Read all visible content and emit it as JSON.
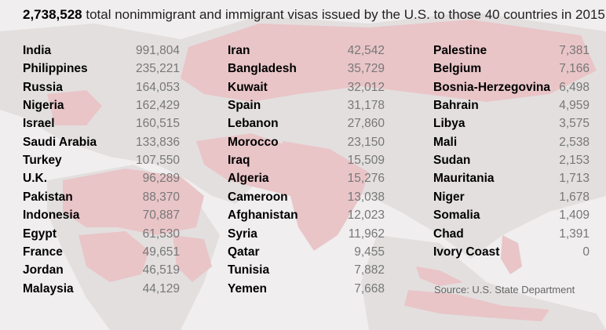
{
  "title": {
    "number": "2,738,528",
    "text": "total nonimmigrant and immigrant visas issued by the U.S. to those 40 countries in 2015"
  },
  "source": "Source: U.S. State Department",
  "colors": {
    "background": "#f0eeee",
    "land": "#e3dfdf",
    "highlight": "#e9c5c8",
    "value_text": "#777777"
  },
  "chart_data": {
    "type": "table",
    "columns": [
      "country",
      "visas"
    ],
    "rows": [
      {
        "country": "India",
        "value": "991,804",
        "visas": 991804
      },
      {
        "country": "Philippines",
        "value": "235,221",
        "visas": 235221
      },
      {
        "country": "Russia",
        "value": "164,053",
        "visas": 164053
      },
      {
        "country": "Nigeria",
        "value": "162,429",
        "visas": 162429
      },
      {
        "country": "Israel",
        "value": "160,515",
        "visas": 160515
      },
      {
        "country": "Saudi Arabia",
        "value": "133,836",
        "visas": 133836
      },
      {
        "country": "Turkey",
        "value": "107,550",
        "visas": 107550
      },
      {
        "country": "U.K.",
        "value": "96,289",
        "visas": 96289
      },
      {
        "country": "Pakistan",
        "value": "88,370",
        "visas": 88370
      },
      {
        "country": "Indonesia",
        "value": "70,887",
        "visas": 70887
      },
      {
        "country": "Egypt",
        "value": "61,530",
        "visas": 61530
      },
      {
        "country": "France",
        "value": "49,651",
        "visas": 49651
      },
      {
        "country": "Jordan",
        "value": "46,519",
        "visas": 46519
      },
      {
        "country": "Malaysia",
        "value": "44,129",
        "visas": 44129
      },
      {
        "country": "Iran",
        "value": "42,542",
        "visas": 42542
      },
      {
        "country": "Bangladesh",
        "value": "35,729",
        "visas": 35729
      },
      {
        "country": "Kuwait",
        "value": "32,012",
        "visas": 32012
      },
      {
        "country": "Spain",
        "value": "31,178",
        "visas": 31178
      },
      {
        "country": "Lebanon",
        "value": "27,860",
        "visas": 27860
      },
      {
        "country": "Morocco",
        "value": "23,150",
        "visas": 23150
      },
      {
        "country": "Iraq",
        "value": "15,509",
        "visas": 15509
      },
      {
        "country": "Algeria",
        "value": "15,276",
        "visas": 15276
      },
      {
        "country": "Cameroon",
        "value": "13,038",
        "visas": 13038
      },
      {
        "country": "Afghanistan",
        "value": "12,023",
        "visas": 12023
      },
      {
        "country": "Syria",
        "value": "11,962",
        "visas": 11962
      },
      {
        "country": "Qatar",
        "value": "9,455",
        "visas": 9455
      },
      {
        "country": "Tunisia",
        "value": "7,882",
        "visas": 7882
      },
      {
        "country": "Yemen",
        "value": "7,668",
        "visas": 7668
      },
      {
        "country": "Palestine",
        "value": "7,381",
        "visas": 7381
      },
      {
        "country": "Belgium",
        "value": "7,166",
        "visas": 7166
      },
      {
        "country": "Bosnia-Herzegovina",
        "value": "6,498",
        "visas": 6498
      },
      {
        "country": "Bahrain",
        "value": "4,959",
        "visas": 4959
      },
      {
        "country": "Libya",
        "value": "3,575",
        "visas": 3575
      },
      {
        "country": "Mali",
        "value": "2,538",
        "visas": 2538
      },
      {
        "country": "Sudan",
        "value": "2,153",
        "visas": 2153
      },
      {
        "country": "Mauritania",
        "value": "1,713",
        "visas": 1713
      },
      {
        "country": "Niger",
        "value": "1,678",
        "visas": 1678
      },
      {
        "country": "Somalia",
        "value": "1,409",
        "visas": 1409
      },
      {
        "country": "Chad",
        "value": "1,391",
        "visas": 1391
      },
      {
        "country": "Ivory Coast",
        "value": "0",
        "visas": 0
      }
    ]
  }
}
